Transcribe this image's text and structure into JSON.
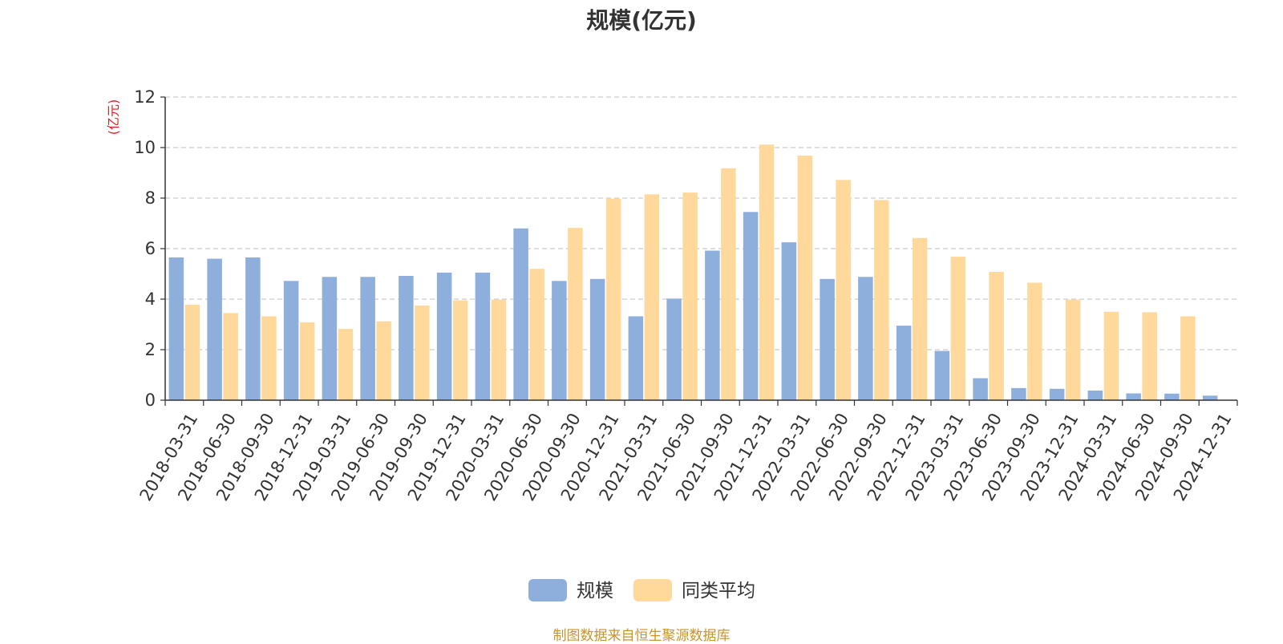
{
  "chart_data": {
    "type": "bar",
    "title": "规模(亿元)",
    "ylabel": "(亿元)",
    "xlabel": "",
    "ylim": [
      0,
      12
    ],
    "yticks": [
      0,
      2,
      4,
      6,
      8,
      10,
      12
    ],
    "grid": true,
    "legend_position": "bottom",
    "categories": [
      "2018-03-31",
      "2018-06-30",
      "2018-09-30",
      "2018-12-31",
      "2019-03-31",
      "2019-06-30",
      "2019-09-30",
      "2019-12-31",
      "2020-03-31",
      "2020-06-30",
      "2020-09-30",
      "2020-12-31",
      "2021-03-31",
      "2021-06-30",
      "2021-09-30",
      "2021-12-31",
      "2022-03-31",
      "2022-06-30",
      "2022-09-30",
      "2022-12-31",
      "2023-03-31",
      "2023-06-30",
      "2023-09-30",
      "2023-12-31",
      "2024-03-31",
      "2024-06-30",
      "2024-09-30",
      "2024-12-31"
    ],
    "series": [
      {
        "name": "规模",
        "color": "#8eaedb",
        "values": [
          5.65,
          5.6,
          5.65,
          4.72,
          4.88,
          4.88,
          4.92,
          5.05,
          5.05,
          6.8,
          4.72,
          4.8,
          3.32,
          4.02,
          5.92,
          7.45,
          6.25,
          4.8,
          4.88,
          2.95,
          1.95,
          0.87,
          0.48,
          0.45,
          0.38,
          0.27,
          0.26,
          0.18
        ]
      },
      {
        "name": "同类平均",
        "color": "#fed99b",
        "values": [
          3.78,
          3.45,
          3.32,
          3.08,
          2.82,
          3.12,
          3.75,
          3.95,
          3.98,
          5.2,
          6.82,
          7.98,
          8.15,
          8.22,
          9.18,
          10.12,
          9.68,
          8.72,
          7.92,
          6.42,
          5.68,
          5.08,
          4.65,
          3.98,
          3.5,
          3.48,
          3.32,
          null
        ]
      }
    ]
  },
  "footer": {
    "source": "制图数据来自恒生聚源数据库"
  }
}
